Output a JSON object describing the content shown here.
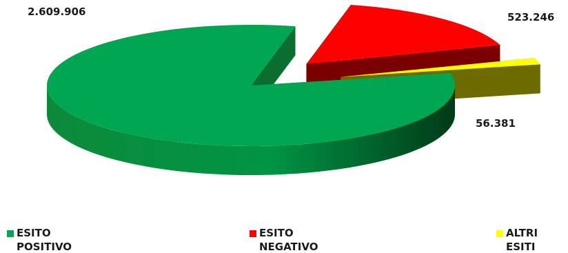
{
  "chart_data": {
    "type": "pie",
    "title": "",
    "slices": [
      {
        "label": "ESITO POSITIVO",
        "value": 2609906,
        "display": "2.609.906",
        "color": "#00a651"
      },
      {
        "label": "ESITO NEGATIVO",
        "value": 523246,
        "display": "523.246",
        "color": "#ff0000"
      },
      {
        "label": "ALTRI ESITI",
        "value": 56381,
        "display": "56.381",
        "color": "#ffff00"
      }
    ],
    "exploded": [
      false,
      true,
      true
    ],
    "view": "3d",
    "legend": {
      "placement": "bottom",
      "items": [
        {
          "line1": "ESITO",
          "line2": "POSITIVO",
          "color": "#00a651"
        },
        {
          "line1": "ESITO",
          "line2": "NEGATIVO",
          "color": "#ff0000"
        },
        {
          "line1": "ALTRI",
          "line2": "ESITI",
          "color": "#ffff00"
        }
      ]
    }
  }
}
